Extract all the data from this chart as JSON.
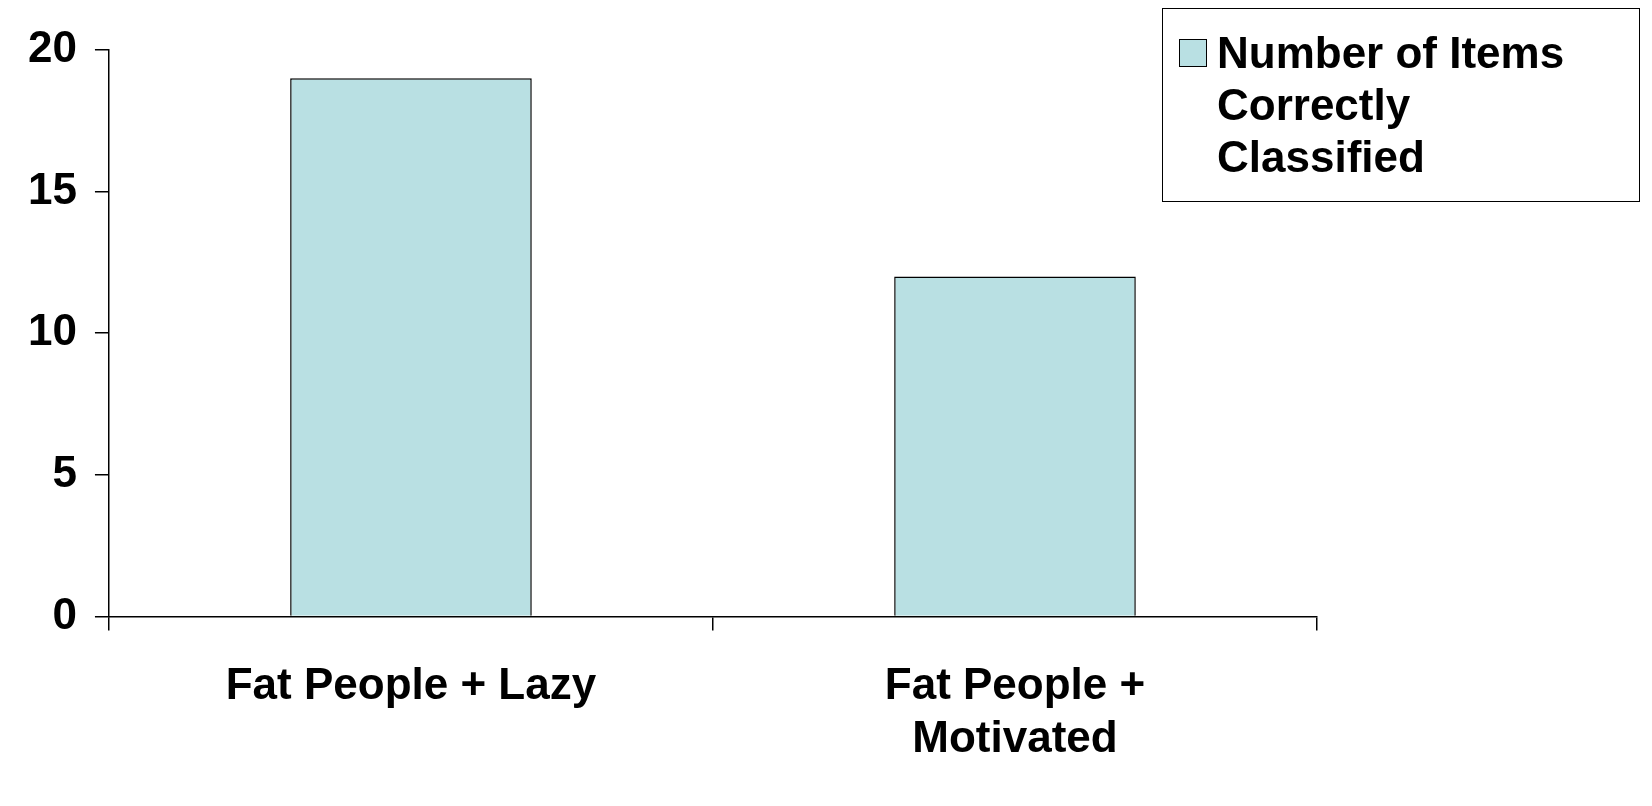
{
  "chart_data": {
    "type": "bar",
    "categories": [
      "Fat People + Lazy",
      "Fat People + Motivated"
    ],
    "series": [
      {
        "name": "Number of Items Correctly Classified",
        "color": "#b9e0e3",
        "values": [
          19,
          12
        ]
      }
    ],
    "ylim": [
      0,
      20
    ],
    "yticks": [
      0,
      5,
      10,
      15,
      20
    ],
    "grid": false,
    "legend": "top right"
  }
}
